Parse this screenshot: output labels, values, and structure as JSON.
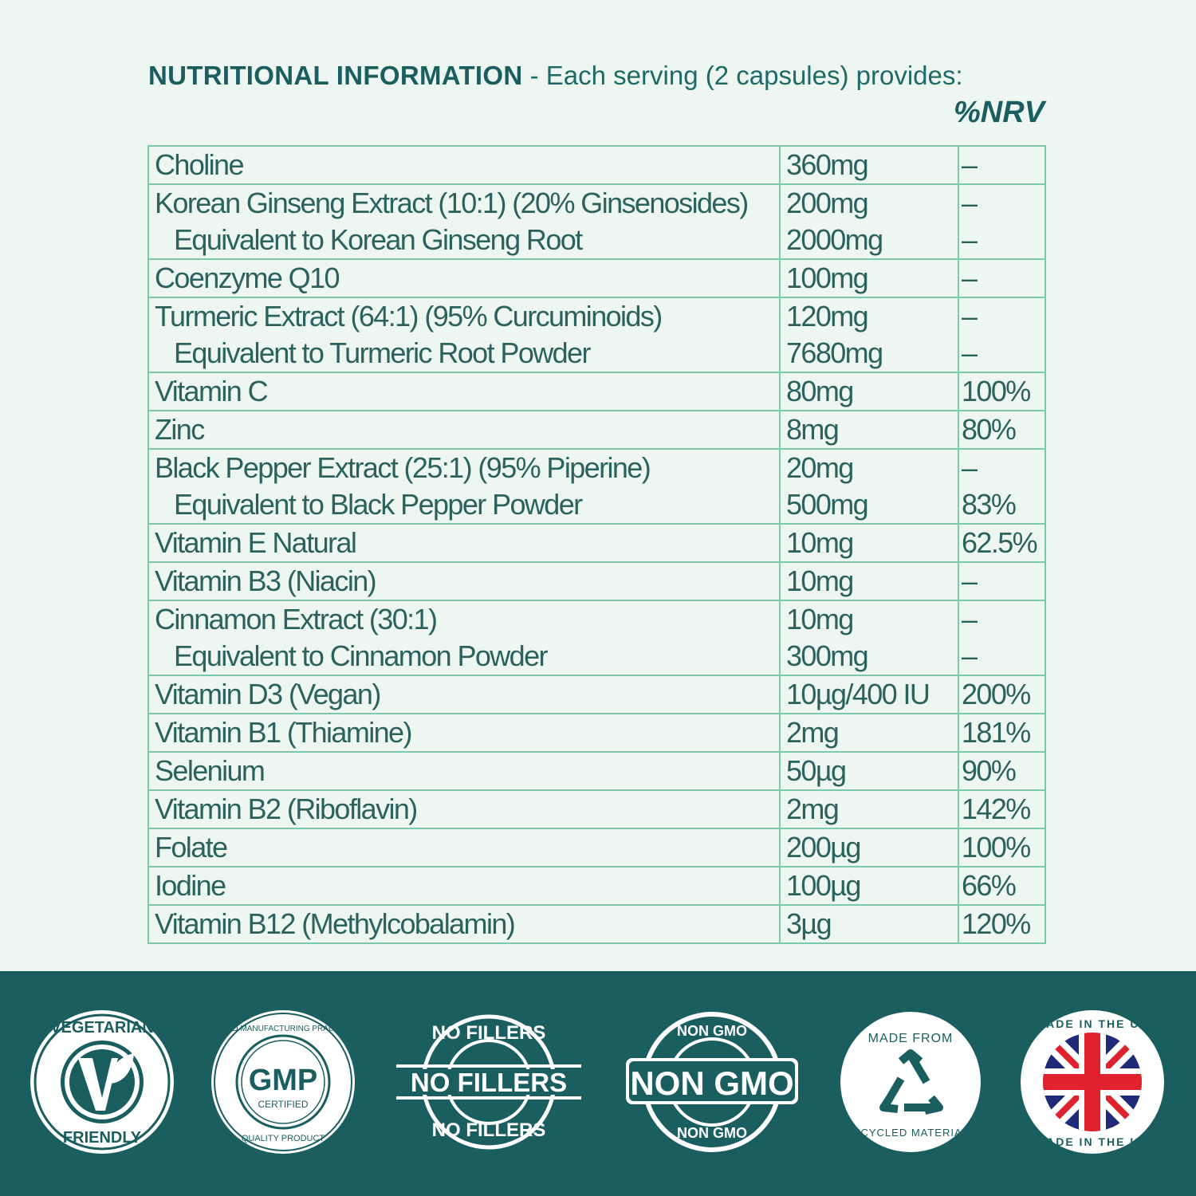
{
  "header": {
    "title": "NUTRITIONAL INFORMATION",
    "subtitle": " - Each serving (2 capsules) provides:",
    "nrv_label": "%NRV"
  },
  "rows": [
    {
      "lines": [
        {
          "name": "Choline",
          "amount": "360mg",
          "nrv": "–"
        }
      ]
    },
    {
      "lines": [
        {
          "name": "Korean Ginseng Extract (10:1) (20% Ginsenosides)",
          "amount": "200mg",
          "nrv": "–"
        },
        {
          "name": "Equivalent to Korean Ginseng Root",
          "amount": "2000mg",
          "nrv": "–",
          "sub": true
        }
      ]
    },
    {
      "lines": [
        {
          "name": "Coenzyme Q10",
          "amount": "100mg",
          "nrv": "–"
        }
      ]
    },
    {
      "lines": [
        {
          "name": "Turmeric Extract (64:1) (95% Curcuminoids)",
          "amount": "120mg",
          "nrv": "–"
        },
        {
          "name": "Equivalent to Turmeric Root Powder",
          "amount": "7680mg",
          "nrv": "–",
          "sub": true
        }
      ]
    },
    {
      "lines": [
        {
          "name": "Vitamin C",
          "amount": "80mg",
          "nrv": "100%"
        }
      ]
    },
    {
      "lines": [
        {
          "name": "Zinc",
          "amount": "8mg",
          "nrv": "80%"
        }
      ]
    },
    {
      "lines": [
        {
          "name": "Black Pepper Extract (25:1) (95% Piperine)",
          "amount": "20mg",
          "nrv": "–"
        },
        {
          "name": "Equivalent to Black Pepper Powder",
          "amount": "500mg",
          "nrv": "83%",
          "sub": true
        }
      ]
    },
    {
      "lines": [
        {
          "name": "Vitamin E Natural",
          "amount": "10mg",
          "nrv": "62.5%"
        }
      ]
    },
    {
      "lines": [
        {
          "name": "Vitamin B3 (Niacin)",
          "amount": "10mg",
          "nrv": "–"
        }
      ]
    },
    {
      "lines": [
        {
          "name": "Cinnamon Extract (30:1)",
          "amount": "10mg",
          "nrv": "–"
        },
        {
          "name": "Equivalent to Cinnamon Powder",
          "amount": "300mg",
          "nrv": "–",
          "sub": true
        }
      ]
    },
    {
      "lines": [
        {
          "name": "Vitamin D3 (Vegan)",
          "amount": "10µg/400 IU",
          "nrv": "200%"
        }
      ]
    },
    {
      "lines": [
        {
          "name": "Vitamin B1 (Thiamine)",
          "amount": "2mg",
          "nrv": "181%"
        }
      ]
    },
    {
      "lines": [
        {
          "name": "Selenium",
          "amount": "50µg",
          "nrv": "90%"
        }
      ]
    },
    {
      "lines": [
        {
          "name": "Vitamin B2 (Riboflavin)",
          "amount": "2mg",
          "nrv": "142%"
        }
      ]
    },
    {
      "lines": [
        {
          "name": "Folate",
          "amount": "200µg",
          "nrv": "100%"
        }
      ]
    },
    {
      "lines": [
        {
          "name": "Iodine",
          "amount": "100µg",
          "nrv": "66%"
        }
      ]
    },
    {
      "lines": [
        {
          "name": "Vitamin B12 (Methylcobalamin)",
          "amount": "3µg",
          "nrv": "120%"
        }
      ]
    }
  ],
  "badges": [
    {
      "icon": "vegetarian-v-leaf-icon",
      "top": "VEGETARIAN",
      "bottom": "FRIENDLY"
    },
    {
      "icon": "gmp-seal-icon",
      "top": "GOOD MANUFACTURING PRACTICE",
      "bottom": "QUALITY PRODUCT",
      "center": "GMP",
      "center_sub": "CERTIFIED"
    },
    {
      "icon": "no-fillers-stamp-icon",
      "top": "NO FILLERS",
      "bottom": "NO FILLERS",
      "center": "NO FILLERS"
    },
    {
      "icon": "non-gmo-stamp-icon",
      "top": "NON GMO",
      "bottom": "NON GMO",
      "center": "NON GMO"
    },
    {
      "icon": "recycle-icon",
      "top": "MADE FROM",
      "bottom": "RECYCLED MATERIALS"
    },
    {
      "icon": "union-jack-flag-icon",
      "top": "MADE IN THE UK",
      "bottom": "MADE IN THE UK"
    }
  ],
  "colors": {
    "background": "#eef6f2",
    "text": "#2b625e",
    "heading": "#1b5e5f",
    "border": "#79c9aa",
    "footer": "#1b5e5f",
    "flag_red": "#e0222e",
    "flag_blue": "#1f2a78"
  }
}
